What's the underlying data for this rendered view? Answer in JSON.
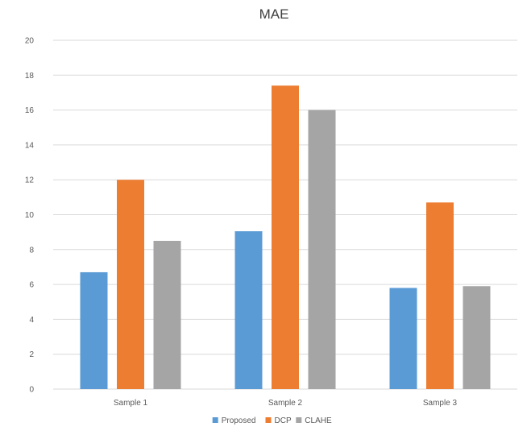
{
  "chart_data": {
    "type": "bar",
    "title": "MAE",
    "xlabel": "",
    "ylabel": "",
    "categories": [
      "Sample 1",
      "Sample 2",
      "Sample 3"
    ],
    "series": [
      {
        "name": "Proposed",
        "values": [
          6.7,
          9.05,
          5.8
        ],
        "color": "#5b9bd5"
      },
      {
        "name": "DCP",
        "values": [
          12.0,
          17.4,
          10.7
        ],
        "color": "#ed7d31"
      },
      {
        "name": "CLAHE",
        "values": [
          8.5,
          16.0,
          5.9
        ],
        "color": "#a5a5a5"
      }
    ],
    "ylim": [
      0,
      20
    ],
    "yticks": [
      0,
      2,
      4,
      6,
      8,
      10,
      12,
      14,
      16,
      18,
      20
    ],
    "grid": true,
    "legend_position": "bottom"
  }
}
